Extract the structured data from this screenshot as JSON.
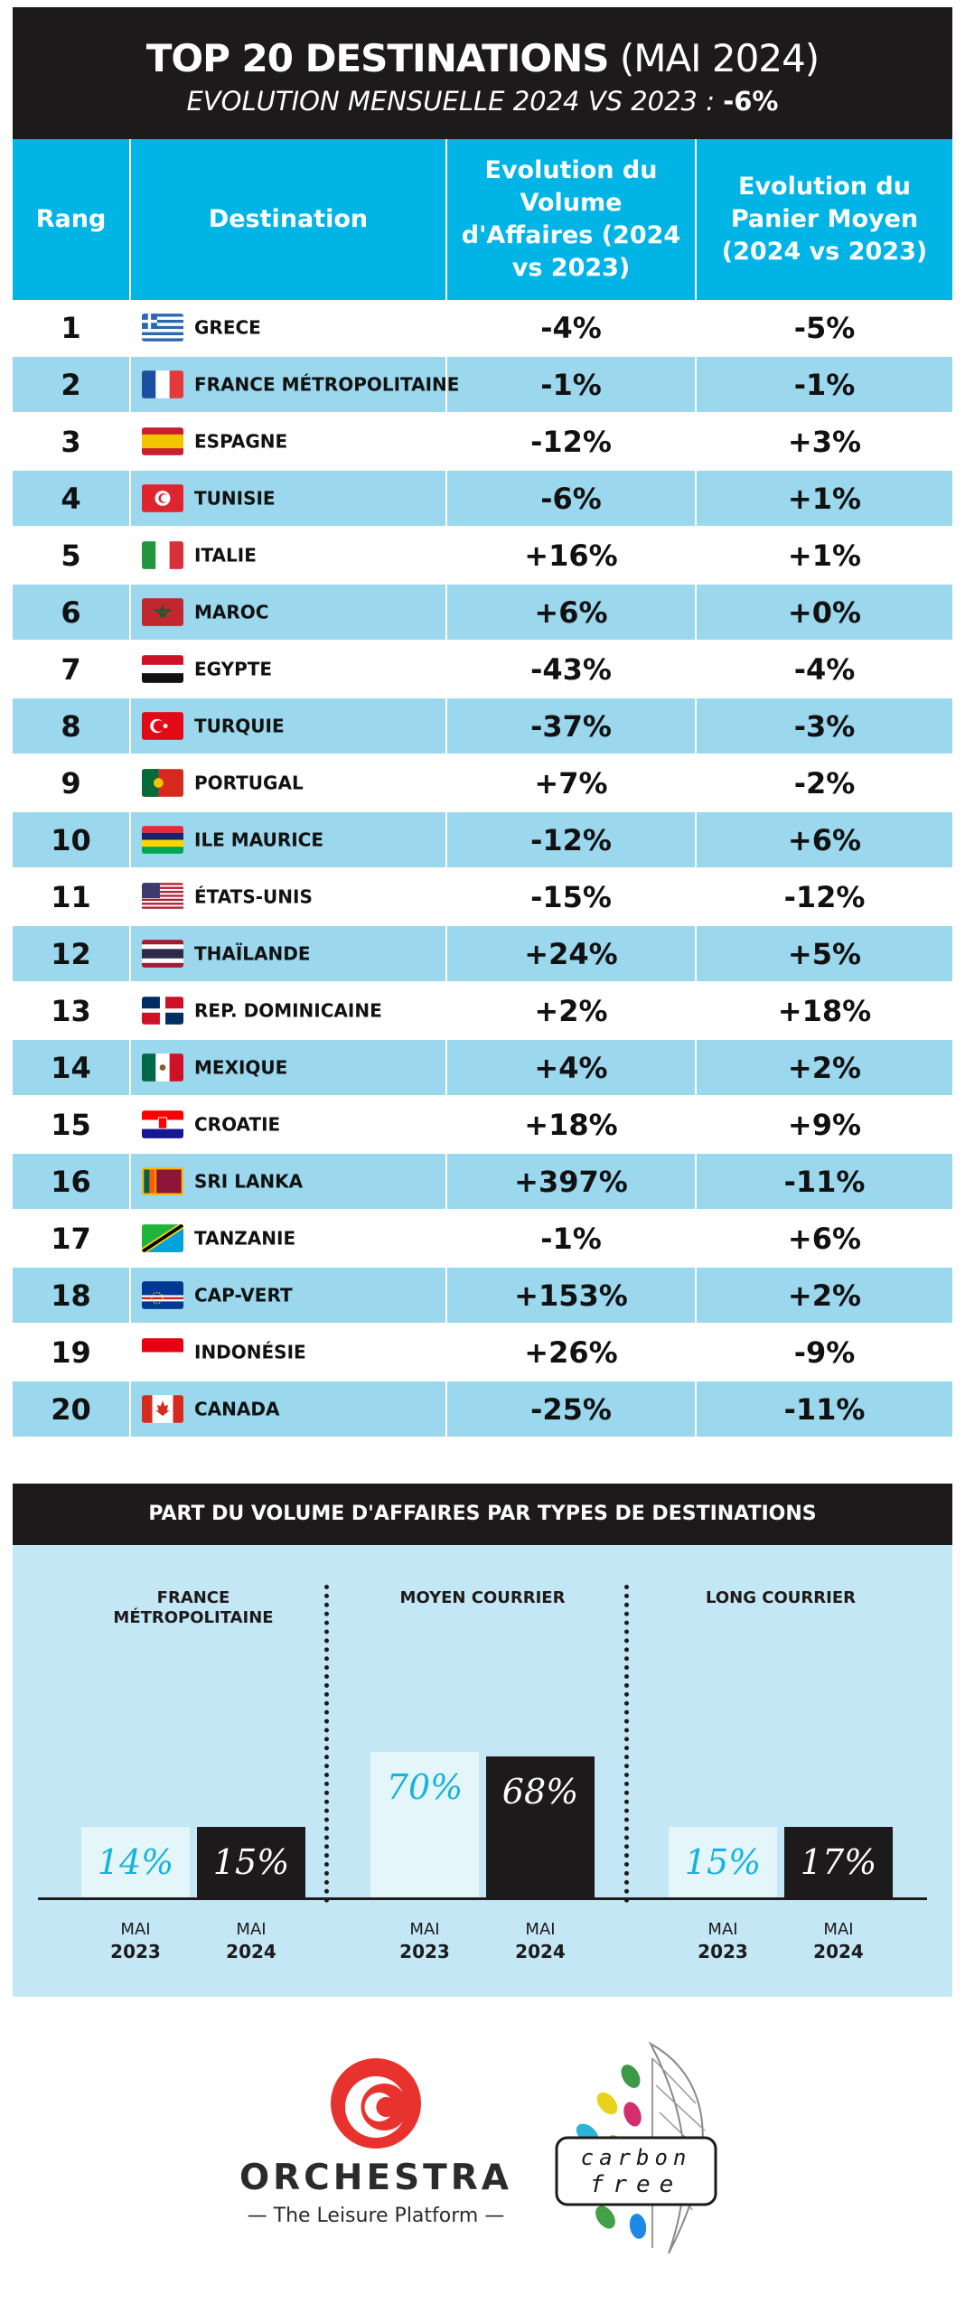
{
  "header": {
    "title_bold": "TOP 20 DESTINATIONS",
    "title_regular": "(MAI 2024)",
    "subtitle": "EVOLUTION MENSUELLE 2024 VS 2023 :",
    "subtitle_value": "-6%"
  },
  "table": {
    "columns": [
      "Rang",
      "Destination",
      "Evolution du Volume d'Affaires (2024 vs 2023)",
      "Evolution du Panier Moyen (2024 vs 2023)"
    ],
    "rows": [
      {
        "rank": "1",
        "destination": "GRECE",
        "flag": "greece-flag-icon",
        "volume": "-4%",
        "panier": "-5%"
      },
      {
        "rank": "2",
        "destination": "FRANCE MÉTROPOLITAINE",
        "flag": "france-flag-icon",
        "volume": "-1%",
        "panier": "-1%"
      },
      {
        "rank": "3",
        "destination": "ESPAGNE",
        "flag": "spain-flag-icon",
        "volume": "-12%",
        "panier": "+3%"
      },
      {
        "rank": "4",
        "destination": "TUNISIE",
        "flag": "tunisia-flag-icon",
        "volume": "-6%",
        "panier": "+1%"
      },
      {
        "rank": "5",
        "destination": "ITALIE",
        "flag": "italy-flag-icon",
        "volume": "+16%",
        "panier": "+1%"
      },
      {
        "rank": "6",
        "destination": "MAROC",
        "flag": "morocco-flag-icon",
        "volume": "+6%",
        "panier": "+0%"
      },
      {
        "rank": "7",
        "destination": "EGYPTE",
        "flag": "egypt-flag-icon",
        "volume": "-43%",
        "panier": "-4%"
      },
      {
        "rank": "8",
        "destination": "TURQUIE",
        "flag": "turkey-flag-icon",
        "volume": "-37%",
        "panier": "-3%"
      },
      {
        "rank": "9",
        "destination": "PORTUGAL",
        "flag": "portugal-flag-icon",
        "volume": "+7%",
        "panier": "-2%"
      },
      {
        "rank": "10",
        "destination": "ILE MAURICE",
        "flag": "mauritius-flag-icon",
        "volume": "-12%",
        "panier": "+6%"
      },
      {
        "rank": "11",
        "destination": "ÉTATS-UNIS",
        "flag": "usa-flag-icon",
        "volume": "-15%",
        "panier": "-12%"
      },
      {
        "rank": "12",
        "destination": "THAÏLANDE",
        "flag": "thailand-flag-icon",
        "volume": "+24%",
        "panier": "+5%"
      },
      {
        "rank": "13",
        "destination": "REP. DOMINICAINE",
        "flag": "dominican-republic-flag-icon",
        "volume": "+2%",
        "panier": "+18%"
      },
      {
        "rank": "14",
        "destination": "MEXIQUE",
        "flag": "mexico-flag-icon",
        "volume": "+4%",
        "panier": "+2%"
      },
      {
        "rank": "15",
        "destination": "CROATIE",
        "flag": "croatia-flag-icon",
        "volume": "+18%",
        "panier": "+9%"
      },
      {
        "rank": "16",
        "destination": "SRI LANKA",
        "flag": "sri-lanka-flag-icon",
        "volume": "+397%",
        "panier": "-11%"
      },
      {
        "rank": "17",
        "destination": "TANZANIE",
        "flag": "tanzania-flag-icon",
        "volume": "-1%",
        "panier": "+6%"
      },
      {
        "rank": "18",
        "destination": "CAP-VERT",
        "flag": "cape-verde-flag-icon",
        "volume": "+153%",
        "panier": "+2%"
      },
      {
        "rank": "19",
        "destination": "INDONÉSIE",
        "flag": "indonesia-flag-icon",
        "volume": "+26%",
        "panier": "-9%"
      },
      {
        "rank": "20",
        "destination": "CANADA",
        "flag": "canada-flag-icon",
        "volume": "-25%",
        "panier": "-11%"
      }
    ]
  },
  "chart_data": {
    "type": "bar",
    "title": "PART DU VOLUME D'AFFAIRES PAR TYPES DE DESTINATIONS",
    "groups": [
      "FRANCE MÉTROPOLITAINE",
      "MOYEN COURRIER",
      "LONG COURRIER"
    ],
    "categories": [
      "MAI 2023",
      "MAI 2024"
    ],
    "category_month": "MAI",
    "category_years": [
      "2023",
      "2024"
    ],
    "series": [
      {
        "group": "FRANCE MÉTROPOLITAINE",
        "values": [
          14,
          15
        ],
        "labels": [
          "14%",
          "15%"
        ]
      },
      {
        "group": "MOYEN COURRIER",
        "values": [
          70,
          68
        ],
        "labels": [
          "70%",
          "68%"
        ]
      },
      {
        "group": "LONG COURRIER",
        "values": [
          15,
          17
        ],
        "labels": [
          "15%",
          "17%"
        ]
      }
    ],
    "colors": {
      "2023": "#e5f6fb",
      "2024": "#1c1a1b",
      "label_2023": "#16b3dd",
      "label_2024": "#ffffff"
    },
    "unit": "%"
  },
  "colors": {
    "header_bg": "#1c1a1b",
    "table_header": "#00b4e6",
    "row_alt": "#9bd7ed",
    "panel_bg": "#c4e7f5",
    "logo_red": "#e8322d"
  },
  "logos": {
    "orchestra_name": "ORCHESTRA",
    "orchestra_tagline": "— The Leisure Platform —",
    "carbon_line1": "carbon",
    "carbon_line2": "free"
  }
}
